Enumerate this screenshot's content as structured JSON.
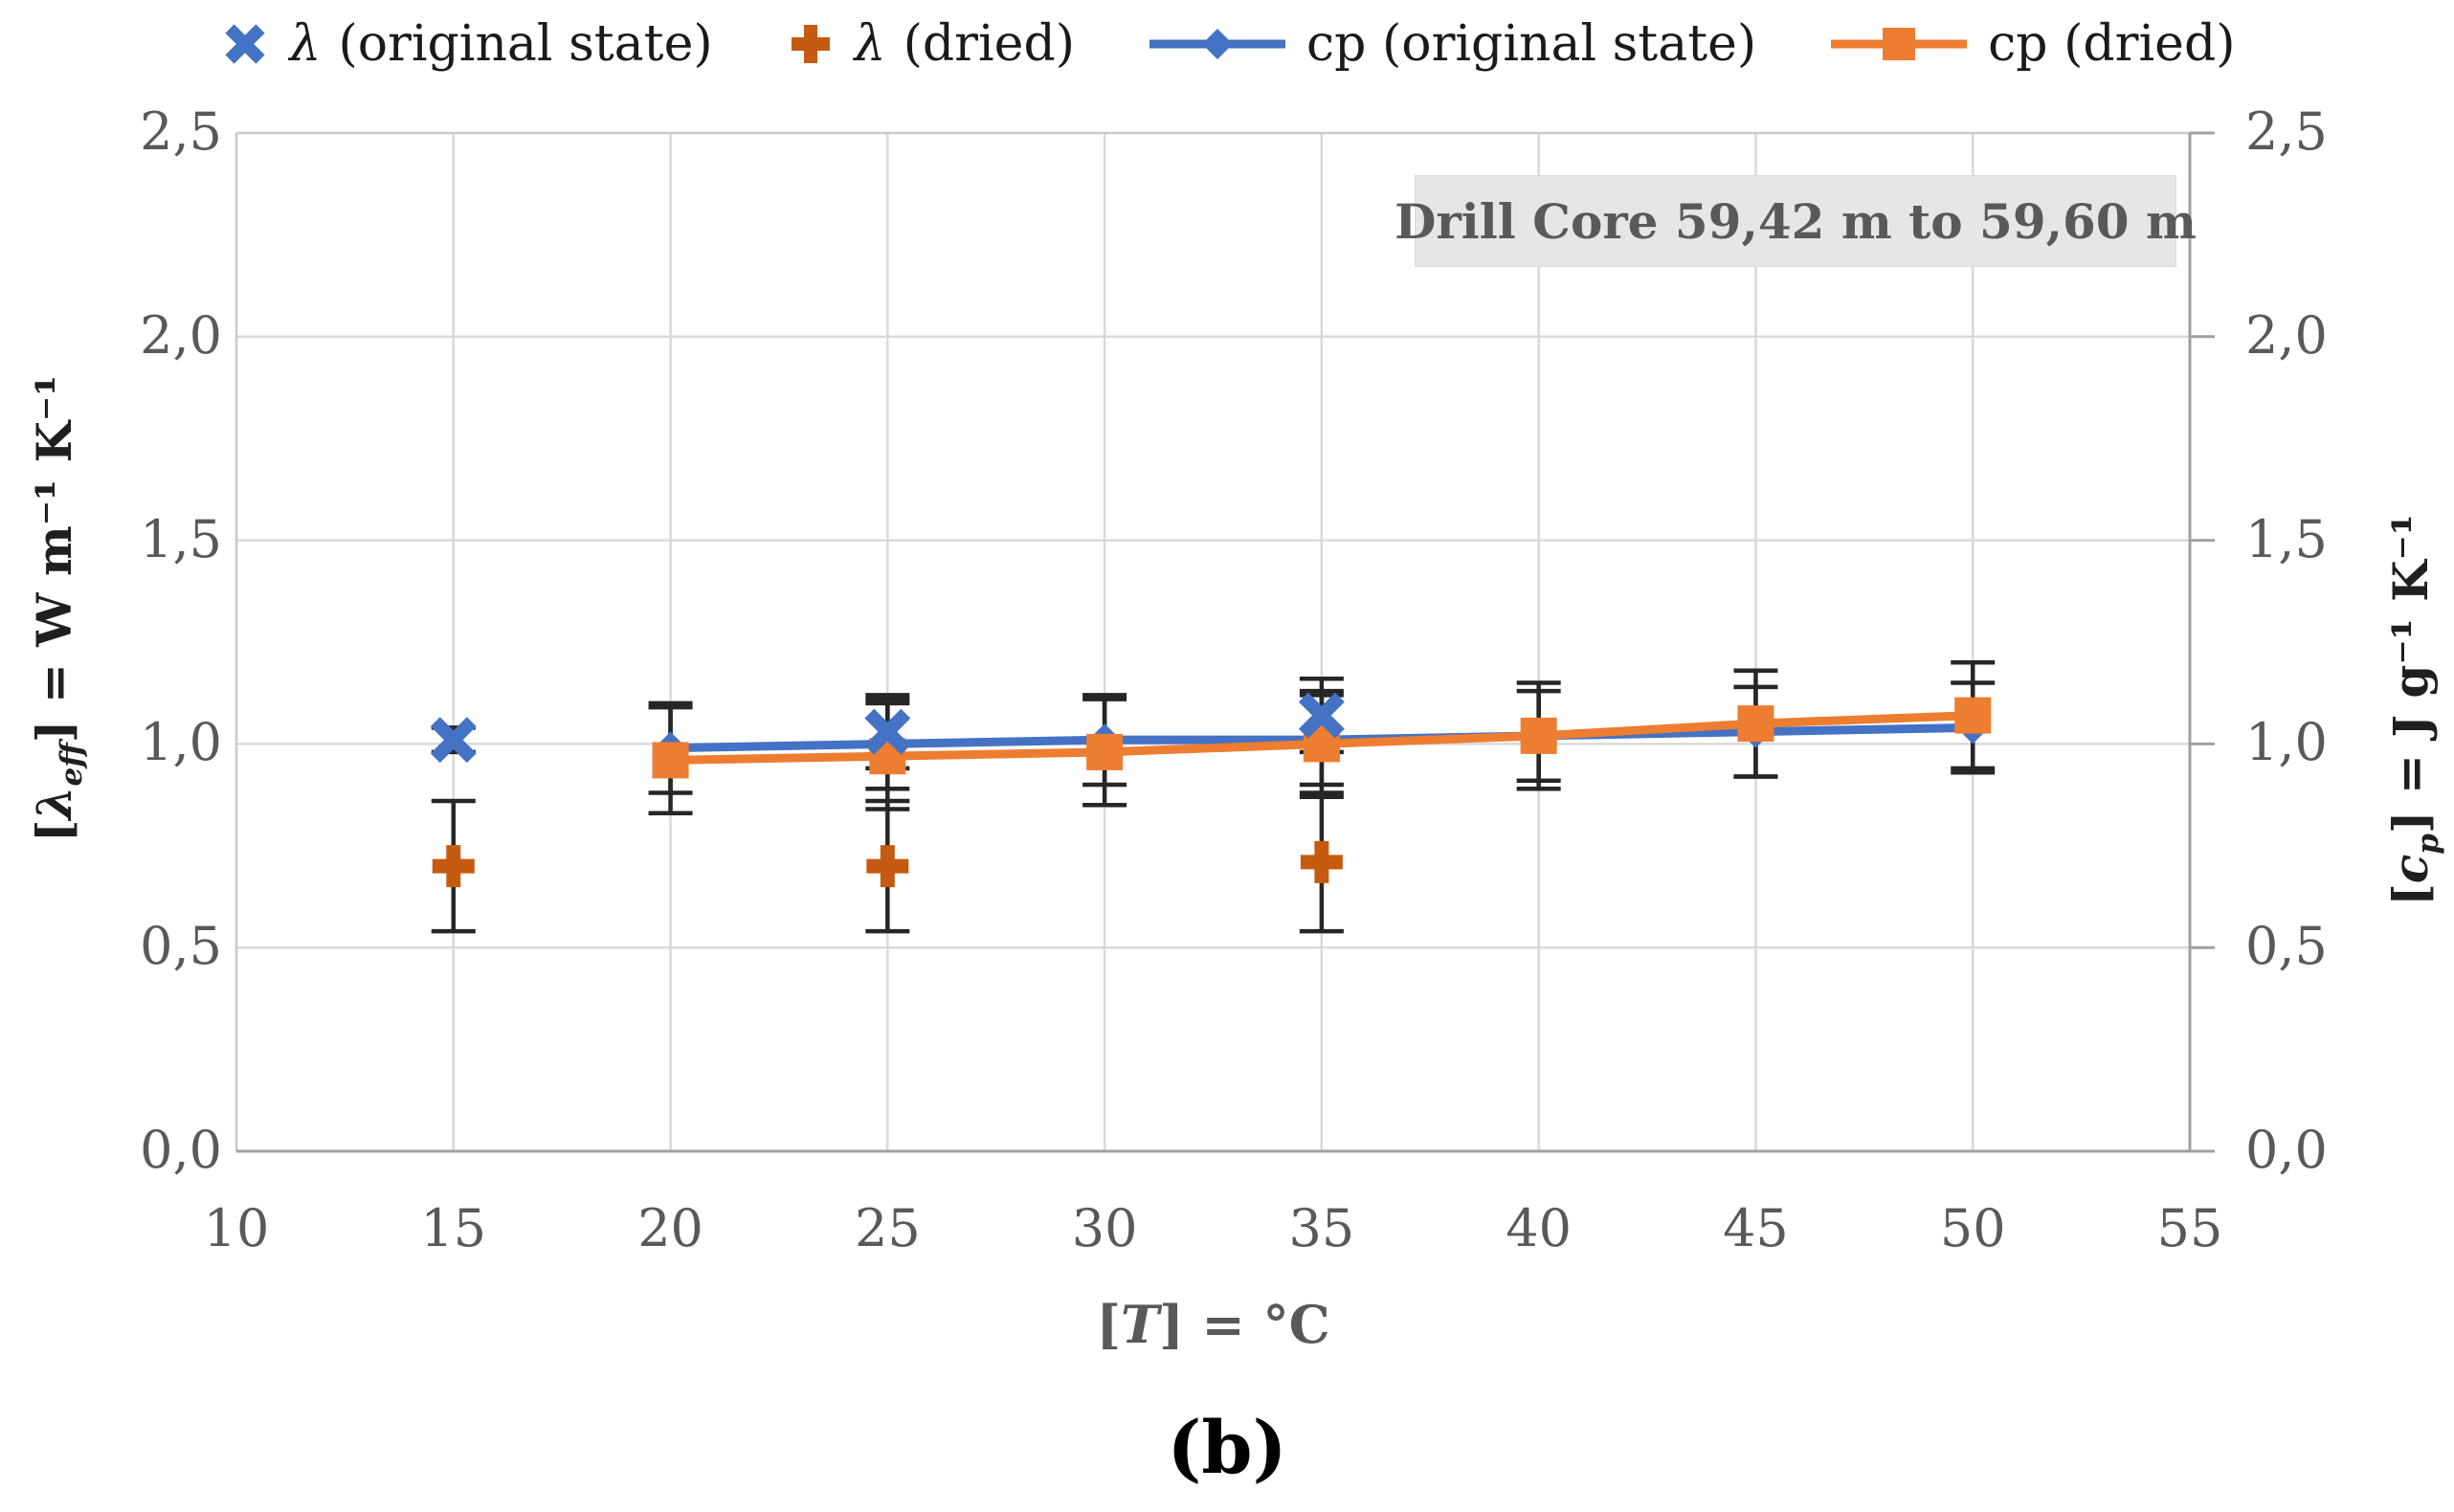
{
  "legend": {
    "items": [
      {
        "sym": "λ",
        "text": " (original state)",
        "marker": "x",
        "color": "#4472C4"
      },
      {
        "sym": "λ",
        "text": " (dried)",
        "marker": "plus",
        "color": "#C55A11"
      },
      {
        "sym": "",
        "text": "cp (original state)",
        "marker": "line-diamond",
        "color": "#4472C4"
      },
      {
        "sym": "",
        "text": "cp (dried)",
        "marker": "line-square",
        "color": "#ED7D31"
      }
    ]
  },
  "annotation": {
    "text": "Drill Core 59,42 m to 59,60 m"
  },
  "caption": "(b)",
  "axes": {
    "left": {
      "pre": "[",
      "sym": "λ",
      "sub": "eff",
      "post": "] = W m⁻¹ K⁻¹",
      "ticks": [
        "0,0",
        "0,5",
        "1,0",
        "1,5",
        "2,0",
        "2,5"
      ]
    },
    "right": {
      "pre": "[",
      "sym": "c",
      "sub": "p",
      "post": "] = J g⁻¹ K⁻¹",
      "ticks": [
        "0,0",
        "0,5",
        "1,0",
        "1,5",
        "2,0",
        "2,5"
      ]
    },
    "x": {
      "pre": "[",
      "sym": "T",
      "sub": "",
      "post": "] = °C",
      "ticks": [
        "10",
        "15",
        "20",
        "25",
        "30",
        "35",
        "40",
        "45",
        "50",
        "55"
      ]
    }
  },
  "chart_data": {
    "type": "line",
    "title": "Drill Core 59,42 m to 59,60 m",
    "xlabel": "[T] = °C",
    "ylabel_left": "[λeff] = W m⁻¹ K⁻¹",
    "ylabel_right": "[cp] = J g⁻¹ K⁻¹",
    "x_range": [
      10,
      55
    ],
    "y_range": [
      0,
      2.5
    ],
    "x_tick_step": 5,
    "y_tick_step": 0.5,
    "grid": true,
    "legend_position": "top",
    "decimal_separator": ",",
    "series": [
      {
        "name": "λ (original state)",
        "marker": "x",
        "color": "#4472C4",
        "line": false,
        "x": [
          15,
          25,
          35
        ],
        "y": [
          1.01,
          1.03,
          1.07
        ],
        "err": [
          0.03,
          0.09,
          0.09
        ]
      },
      {
        "name": "λ (dried)",
        "marker": "plus",
        "color": "#C55A11",
        "line": false,
        "x": [
          15,
          25,
          35
        ],
        "y": [
          0.7,
          0.7,
          0.71
        ],
        "err": [
          0.16,
          0.16,
          0.17
        ]
      },
      {
        "name": "cp (original state)",
        "marker": "diamond",
        "color": "#4472C4",
        "line": true,
        "x": [
          20,
          25,
          30,
          35,
          40,
          45,
          50
        ],
        "y": [
          0.99,
          1.0,
          1.01,
          1.01,
          1.02,
          1.03,
          1.04
        ],
        "err": [
          0.11,
          0.11,
          0.11,
          0.11,
          0.11,
          0.11,
          0.11
        ]
      },
      {
        "name": "cp (dried)",
        "marker": "square",
        "color": "#ED7D31",
        "line": true,
        "x": [
          20,
          25,
          30,
          35,
          40,
          45,
          50
        ],
        "y": [
          0.96,
          0.97,
          0.98,
          1.0,
          1.02,
          1.05,
          1.07
        ],
        "err": [
          0.13,
          0.13,
          0.13,
          0.13,
          0.13,
          0.13,
          0.13
        ]
      }
    ],
    "colors": {
      "grid": "#D9D9D9",
      "border_light": "#C9C9C9",
      "axis_dark": "#A0A0A0",
      "error_bar": "#262626"
    }
  }
}
